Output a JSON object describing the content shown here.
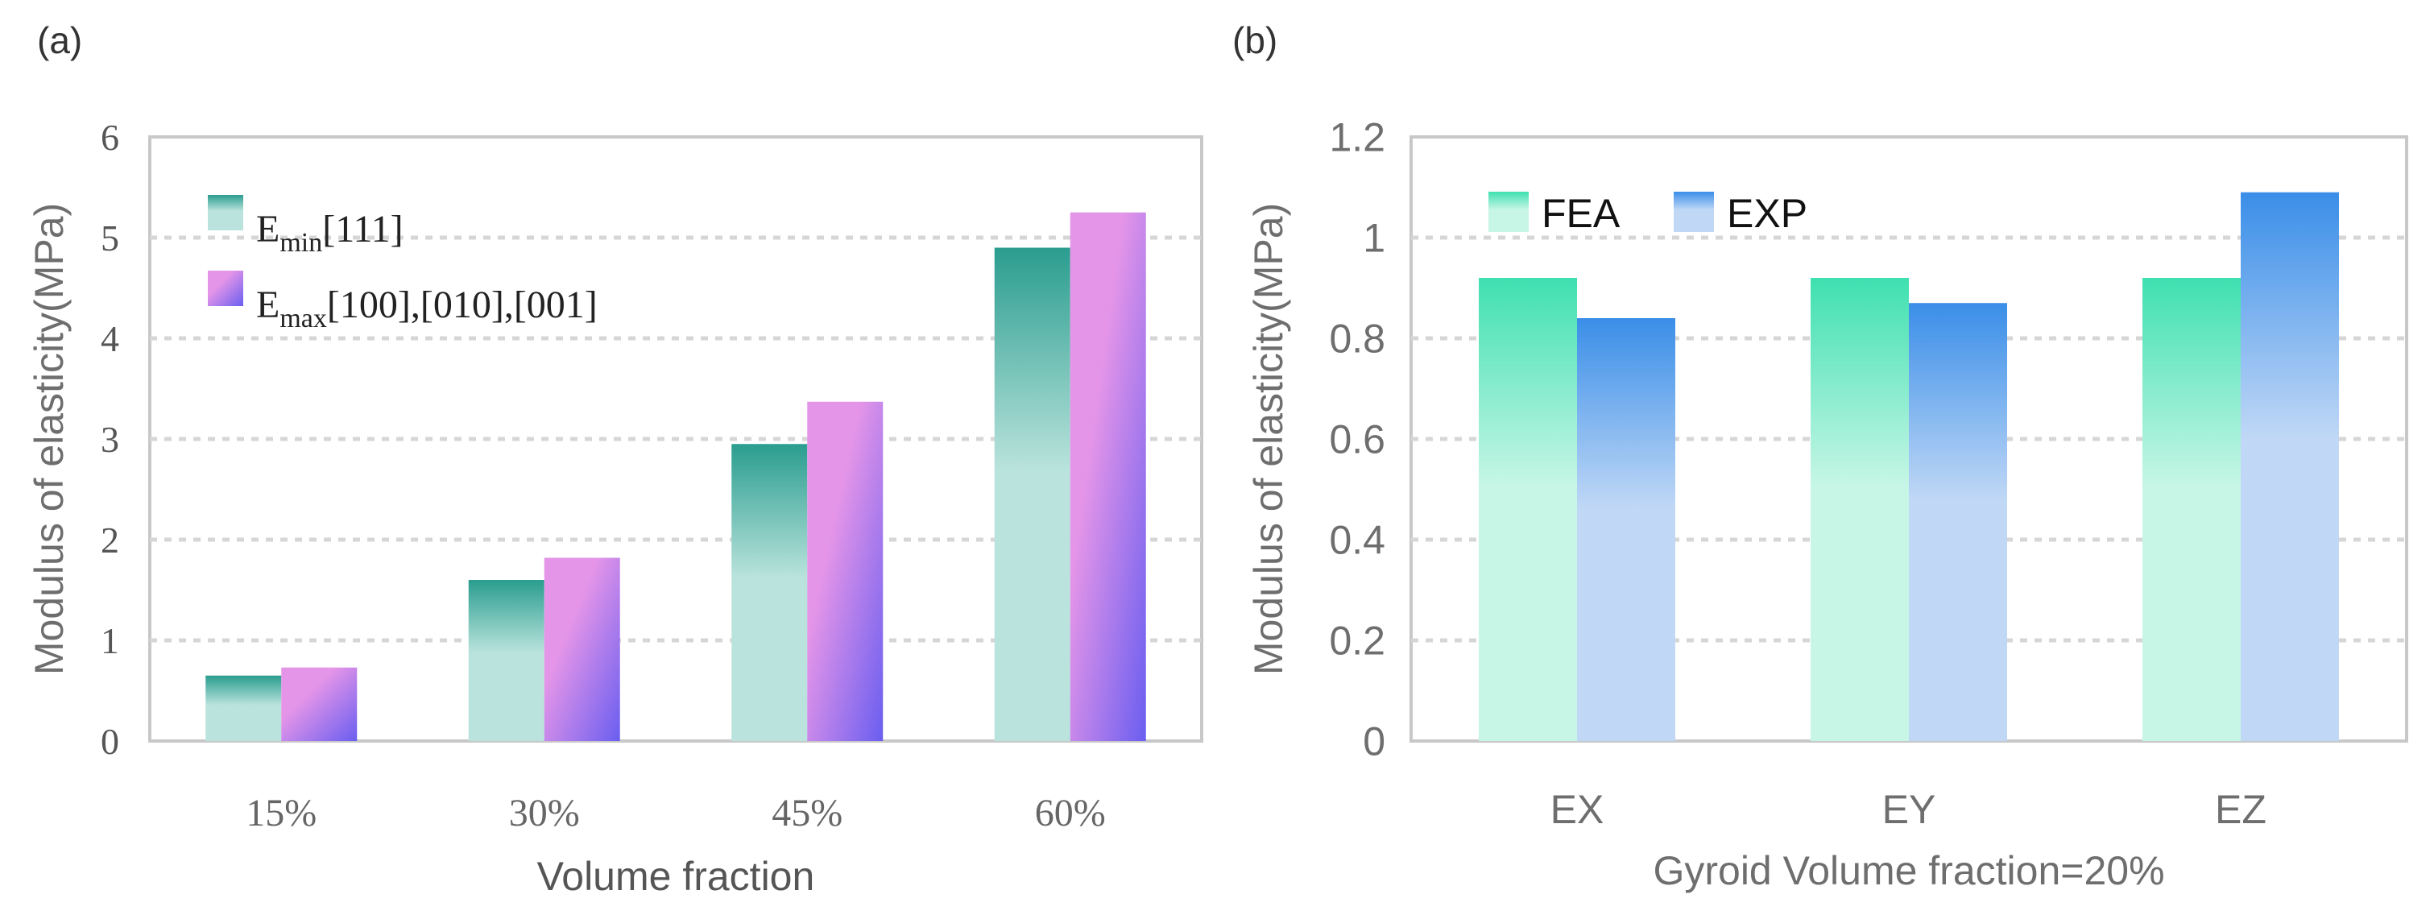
{
  "charts": [
    {
      "id": "a",
      "panel_label": "(a)",
      "chart_data": {
        "type": "bar",
        "categories": [
          "15%",
          "30%",
          "45%",
          "60%"
        ],
        "series": [
          {
            "name": "Emin[111]",
            "label_main": "E",
            "label_sub": "min",
            "label_rest": "[111]",
            "values": [
              0.65,
              1.6,
              2.95,
              4.9
            ]
          },
          {
            "name": "Emax[100],[010],[001]",
            "label_main": "E",
            "label_sub": "max",
            "label_rest": "[100],[010],[001]",
            "values": [
              0.73,
              1.82,
              3.37,
              5.25
            ]
          }
        ],
        "title": "",
        "xlabel": "Volume fraction",
        "ylabel": "Modulus of elasticity(MPa)",
        "ylim": [
          0,
          6
        ],
        "yticks": [
          "0",
          "1",
          "2",
          "3",
          "4",
          "5",
          "6"
        ],
        "grid": true,
        "legend": "top-left",
        "colors": {
          "s0_top": "#2a9d8f",
          "s0_bottom": "#b9e3dc",
          "s1_top": "#e495e8",
          "s1_bottom": "#6a5ef0"
        }
      }
    },
    {
      "id": "b",
      "panel_label": "(b)",
      "chart_data": {
        "type": "bar",
        "categories": [
          "EX",
          "EY",
          "EZ"
        ],
        "series": [
          {
            "name": "FEA",
            "values": [
              0.92,
              0.92,
              0.92
            ]
          },
          {
            "name": "EXP",
            "values": [
              0.84,
              0.87,
              1.09
            ]
          }
        ],
        "title": "",
        "xlabel": "Gyroid Volume fraction=20%",
        "ylabel": "Modulus of elasticity(MPa)",
        "ylim": [
          0,
          1.2
        ],
        "yticks": [
          "0",
          "0.2",
          "0.4",
          "0.6",
          "0.8",
          "1",
          "1.2"
        ],
        "grid": true,
        "legend": "top-left",
        "colors": {
          "s0_top": "#3fe0b0",
          "s0_bottom": "#c7f6e6",
          "s1_top": "#3a8ee8",
          "s1_bottom": "#c0d8f6"
        }
      }
    }
  ]
}
